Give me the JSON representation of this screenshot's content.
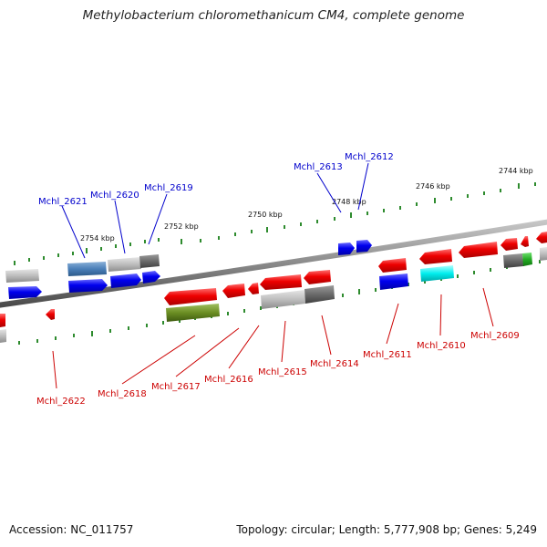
{
  "title": "Methylobacterium chloromethanicum CM4, complete genome",
  "footer": {
    "accession": "Accession: NC_011757",
    "summary": "Topology: circular; Length: 5,777,908 bp; Genes: 5,249"
  },
  "colors": {
    "forward_label": "#0000cc",
    "reverse_label": "#cc0000",
    "backbone": "#808080",
    "tick": "#2e8b2e"
  },
  "kbp_marks": [
    "2754 kbp",
    "2752 kbp",
    "2750 kbp",
    "2748 kbp",
    "2746 kbp",
    "2744 kbp"
  ],
  "forward_genes": [
    "Mchl_2621",
    "Mchl_2620",
    "Mchl_2619",
    "Mchl_2613",
    "Mchl_2612"
  ],
  "reverse_genes": [
    "Mchl_2622",
    "Mchl_2618",
    "Mchl_2617",
    "Mchl_2616",
    "Mchl_2615",
    "Mchl_2614",
    "Mchl_2611",
    "Mchl_2610",
    "Mchl_2609"
  ]
}
